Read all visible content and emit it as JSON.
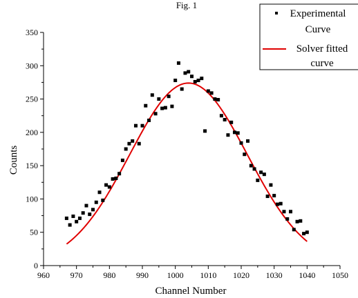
{
  "chart_data": {
    "type": "scatter",
    "title": "Fig. 1",
    "xlabel": "Channel Number",
    "ylabel": "Counts",
    "xlim": [
      960,
      1050
    ],
    "ylim": [
      0,
      350
    ],
    "xticks": [
      960,
      970,
      980,
      990,
      1000,
      1010,
      1020,
      1030,
      1040,
      1050
    ],
    "yticks": [
      0,
      50,
      100,
      150,
      200,
      250,
      300,
      350
    ],
    "grid": false,
    "legend_position": "top-right",
    "series": [
      {
        "name": "Experimental Curve",
        "style": "markers",
        "color": "#000000",
        "x": [
          967,
          968,
          969,
          970,
          971,
          972,
          973,
          974,
          975,
          976,
          977,
          978,
          979,
          980,
          981,
          982,
          983,
          984,
          985,
          986,
          987,
          988,
          989,
          990,
          991,
          992,
          993,
          994,
          995,
          996,
          997,
          998,
          999,
          1000,
          1001,
          1002,
          1003,
          1004,
          1005,
          1006,
          1007,
          1008,
          1009,
          1010,
          1011,
          1012,
          1013,
          1014,
          1015,
          1016,
          1017,
          1018,
          1019,
          1020,
          1021,
          1022,
          1023,
          1024,
          1025,
          1026,
          1027,
          1028,
          1029,
          1030,
          1031,
          1032,
          1033,
          1034,
          1035,
          1036,
          1037,
          1038,
          1039,
          1040
        ],
        "y": [
          71,
          61,
          74,
          66,
          71,
          79,
          90,
          77,
          84,
          95,
          110,
          98,
          121,
          118,
          130,
          131,
          138,
          158,
          175,
          183,
          187,
          210,
          183,
          210,
          240,
          218,
          256,
          228,
          250,
          236,
          237,
          254,
          239,
          278,
          304,
          265,
          289,
          291,
          284,
          276,
          278,
          281,
          202,
          262,
          259,
          250,
          249,
          225,
          219,
          196,
          215,
          200,
          199,
          184,
          167,
          187,
          150,
          145,
          128,
          140,
          137,
          104,
          121,
          105,
          92,
          93,
          81,
          70,
          81,
          54,
          66,
          67,
          48,
          50
        ]
      },
      {
        "name": "Solver fitted curve",
        "style": "line",
        "color": "#e00000",
        "fit": {
          "amplitude": 274,
          "center": 1004,
          "sigma": 17.9
        }
      }
    ]
  }
}
